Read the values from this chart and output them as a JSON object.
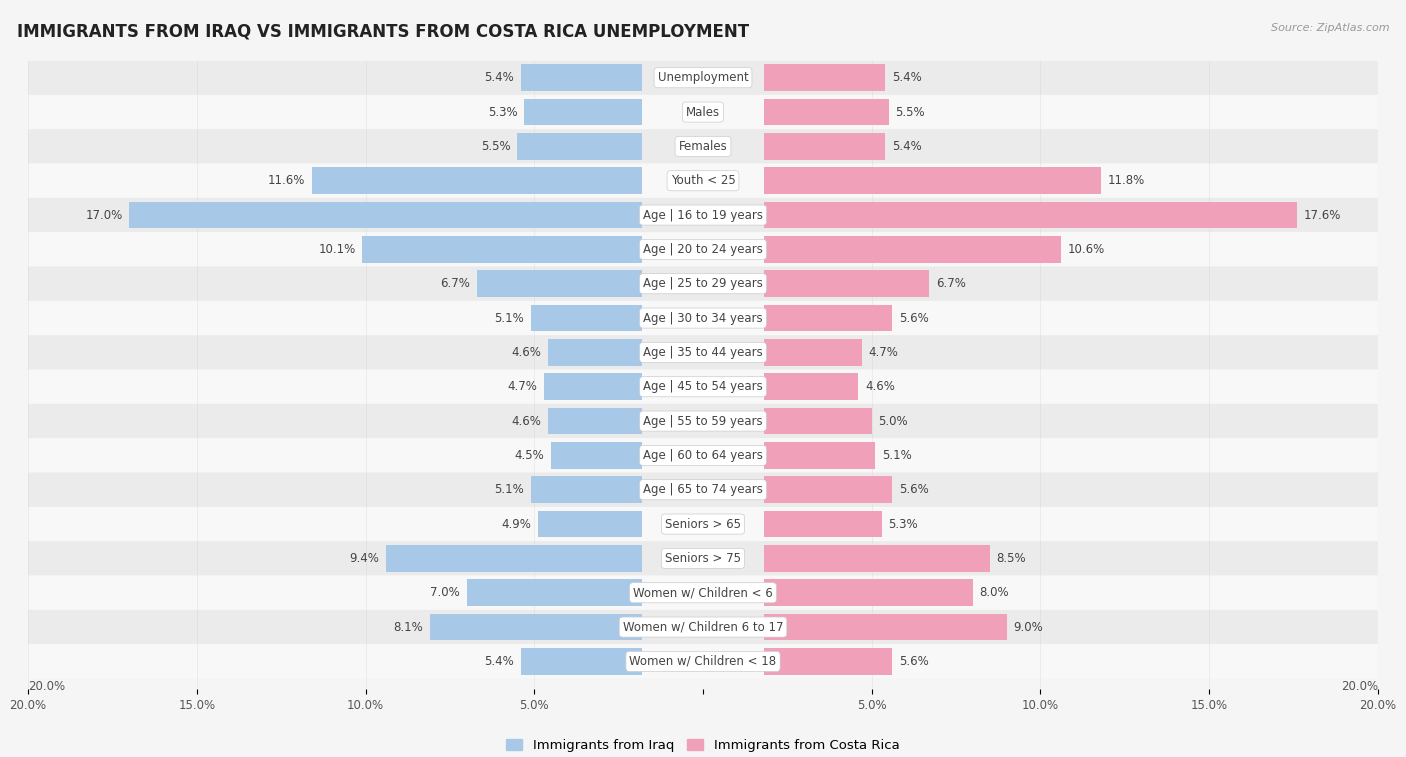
{
  "title": "IMMIGRANTS FROM IRAQ VS IMMIGRANTS FROM COSTA RICA UNEMPLOYMENT",
  "source": "Source: ZipAtlas.com",
  "categories": [
    "Unemployment",
    "Males",
    "Females",
    "Youth < 25",
    "Age | 16 to 19 years",
    "Age | 20 to 24 years",
    "Age | 25 to 29 years",
    "Age | 30 to 34 years",
    "Age | 35 to 44 years",
    "Age | 45 to 54 years",
    "Age | 55 to 59 years",
    "Age | 60 to 64 years",
    "Age | 65 to 74 years",
    "Seniors > 65",
    "Seniors > 75",
    "Women w/ Children < 6",
    "Women w/ Children 6 to 17",
    "Women w/ Children < 18"
  ],
  "iraq_values": [
    5.4,
    5.3,
    5.5,
    11.6,
    17.0,
    10.1,
    6.7,
    5.1,
    4.6,
    4.7,
    4.6,
    4.5,
    5.1,
    4.9,
    9.4,
    7.0,
    8.1,
    5.4
  ],
  "costa_rica_values": [
    5.4,
    5.5,
    5.4,
    11.8,
    17.6,
    10.6,
    6.7,
    5.6,
    4.7,
    4.6,
    5.0,
    5.1,
    5.6,
    5.3,
    8.5,
    8.0,
    9.0,
    5.6
  ],
  "iraq_color": "#a8c8e8",
  "costa_rica_color": "#f0a0b8",
  "row_color_even": "#f0f0f0",
  "row_color_odd": "#e0e0e0",
  "bar_row_color_even": "#dce8f0",
  "bar_row_color_odd": "#d0dce8",
  "background_color": "#f5f5f5",
  "axis_max": 20.0,
  "bar_height": 0.78,
  "label_fontsize": 8.5,
  "value_fontsize": 8.5,
  "title_fontsize": 12,
  "legend_iraq": "Immigrants from Iraq",
  "legend_costa_rica": "Immigrants from Costa Rica",
  "tick_positions": [
    -20,
    -15,
    -10,
    -5,
    0,
    5,
    10,
    15,
    20
  ],
  "tick_labels": [
    "20.0%",
    "15.0%",
    "10.0%",
    "5.0%",
    "",
    "5.0%",
    "10.0%",
    "15.0%",
    "20.0%"
  ]
}
